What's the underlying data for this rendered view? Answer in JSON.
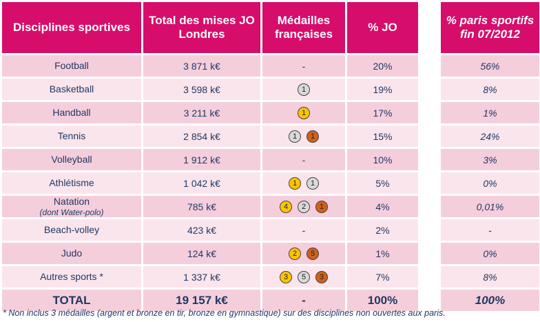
{
  "header": {
    "discipline": "Disciplines sportives",
    "mises": "Total des mises JO Londres",
    "medailles": "Médailles françaises",
    "pct_jo": "% JO",
    "pct_paris": "% paris sportifs fin 07/2012"
  },
  "rows": [
    {
      "discipline": "Football",
      "sub": "",
      "mises": "3 871 k€",
      "medals": [],
      "dash": "-",
      "pct_jo": "20%",
      "pct_paris": "56%"
    },
    {
      "discipline": "Basketball",
      "sub": "",
      "mises": "3 598 k€",
      "medals": [
        {
          "type": "silver",
          "n": "1"
        }
      ],
      "dash": "",
      "pct_jo": "19%",
      "pct_paris": "8%"
    },
    {
      "discipline": "Handball",
      "sub": "",
      "mises": "3 211 k€",
      "medals": [
        {
          "type": "gold",
          "n": "1"
        }
      ],
      "dash": "",
      "pct_jo": "17%",
      "pct_paris": "1%"
    },
    {
      "discipline": "Tennis",
      "sub": "",
      "mises": "2 854 k€",
      "medals": [
        {
          "type": "silver",
          "n": "1"
        },
        {
          "type": "bronze",
          "n": "1"
        }
      ],
      "dash": "",
      "pct_jo": "15%",
      "pct_paris": "24%"
    },
    {
      "discipline": "Volleyball",
      "sub": "",
      "mises": "1 912 k€",
      "medals": [],
      "dash": "-",
      "pct_jo": "10%",
      "pct_paris": "3%"
    },
    {
      "discipline": "Athlétisme",
      "sub": "",
      "mises": "1 042 k€",
      "medals": [
        {
          "type": "gold",
          "n": "1"
        },
        {
          "type": "silver",
          "n": "1"
        }
      ],
      "dash": "",
      "pct_jo": "5%",
      "pct_paris": "0%"
    },
    {
      "discipline": "Natation",
      "sub": "(dont Water-polo)",
      "mises": "785 k€",
      "medals": [
        {
          "type": "gold",
          "n": "4"
        },
        {
          "type": "silver",
          "n": "2"
        },
        {
          "type": "bronze",
          "n": "1"
        }
      ],
      "dash": "",
      "pct_jo": "4%",
      "pct_paris": "0,01%"
    },
    {
      "discipline": "Beach-volley",
      "sub": "",
      "mises": "423 k€",
      "medals": [],
      "dash": "-",
      "pct_jo": "2%",
      "pct_paris": "-"
    },
    {
      "discipline": "Judo",
      "sub": "",
      "mises": "124 k€",
      "medals": [
        {
          "type": "gold",
          "n": "2"
        },
        {
          "type": "bronze",
          "n": "5"
        }
      ],
      "dash": "",
      "pct_jo": "1%",
      "pct_paris": "0%"
    },
    {
      "discipline": "Autres sports *",
      "sub": "",
      "mises": "1 337 k€",
      "medals": [
        {
          "type": "gold",
          "n": "3"
        },
        {
          "type": "silver",
          "n": "5"
        },
        {
          "type": "bronze",
          "n": "3"
        }
      ],
      "dash": "",
      "pct_jo": "7%",
      "pct_paris": "8%"
    }
  ],
  "total": {
    "discipline": "TOTAL",
    "mises": "19 157 k€",
    "medals": "-",
    "pct_jo": "100%",
    "pct_paris": "100%"
  },
  "footnote": "* Non inclus 3 médailles (argent et bronze en tir, bronze en gymnastique) sur des disciplines non ouvertes aux paris.",
  "colors": {
    "header": "#d60d6b",
    "row_odd": "#f5cedc",
    "row_even": "#fbe5ec",
    "gold": "#ffc400",
    "silver": "#d9d9d9",
    "bronze": "#d1611a"
  }
}
